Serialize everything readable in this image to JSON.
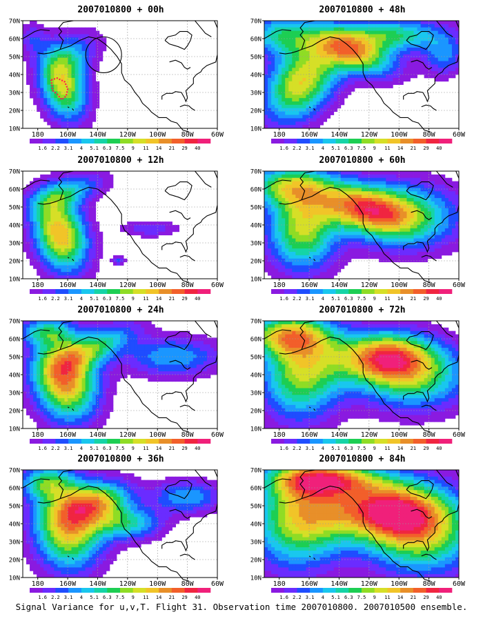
{
  "caption": "Signal Variance for u,v,T. Flight 31. Observation time 2007010800. 2007010500 ensemble.",
  "init_time": "2007010800",
  "colors": [
    "#8a1ae0",
    "#6a2cff",
    "#1f4dff",
    "#1a96ff",
    "#19c7ee",
    "#15d4a6",
    "#1dce53",
    "#8fdc25",
    "#d6df27",
    "#f1c428",
    "#e88f29",
    "#f25f2a",
    "#f02540",
    "#f0207a",
    "#ffffff"
  ],
  "chart_data": {
    "type": "heatmap",
    "xlabel": "",
    "ylabel": "",
    "x_ticks": [
      "180",
      "160W",
      "140W",
      "120W",
      "100W",
      "80W",
      "60W"
    ],
    "y_ticks": [
      "10N",
      "20N",
      "30N",
      "40N",
      "50N",
      "60N",
      "70N"
    ],
    "x_range_lon": [
      -190,
      -60
    ],
    "y_range_lat": [
      10,
      70
    ],
    "colorbar_labels": [
      "1.6",
      "2.2",
      "3.1",
      "4",
      "5.1",
      "6.3",
      "7.5",
      "9",
      "11",
      "14",
      "21",
      "29",
      "40"
    ],
    "colorbar_swatches": 14,
    "panels": [
      {
        "id": "p00",
        "lead": "00h",
        "label": "+ 00h",
        "max_level": 8,
        "blobs": [
          {
            "lon": -163,
            "lat": 34,
            "rlon": 16,
            "rlat": 22,
            "amp": 9.5,
            "rot": -25
          },
          {
            "lon": -156,
            "lat": 52,
            "rlon": 22,
            "rlat": 12,
            "amp": 3.5,
            "rot": -20
          },
          {
            "lon": -184,
            "lat": 60,
            "rlon": 10,
            "rlat": 10,
            "amp": 2.5,
            "rot": 0
          }
        ],
        "obs_loop": [
          [
            -171,
            37
          ],
          [
            -167,
            38
          ],
          [
            -162,
            36
          ],
          [
            -160,
            32
          ],
          [
            -161,
            28
          ],
          [
            -164,
            26
          ],
          [
            -167,
            29
          ],
          [
            -170,
            31
          ]
        ],
        "circle": {
          "lon": -136,
          "lat": 51,
          "r": 12
        }
      },
      {
        "id": "p48",
        "lead": "48h",
        "label": "+ 48h",
        "max_level": 10,
        "blobs": [
          {
            "lon": -165,
            "lat": 36,
            "rlon": 30,
            "rlat": 20,
            "amp": 10,
            "rot": -35
          },
          {
            "lon": -130,
            "lat": 52,
            "rlon": 30,
            "rlat": 12,
            "amp": 9.5,
            "rot": 15
          },
          {
            "lon": -105,
            "lat": 62,
            "rlon": 40,
            "rlat": 10,
            "amp": 7,
            "rot": 0
          },
          {
            "lon": -180,
            "lat": 62,
            "rlon": 25,
            "rlat": 12,
            "amp": 6,
            "rot": 0
          },
          {
            "lon": -70,
            "lat": 50,
            "rlon": 15,
            "rlat": 12,
            "amp": 4,
            "rot": 0
          }
        ]
      },
      {
        "id": "p12",
        "lead": "12h",
        "label": "+ 12h",
        "max_level": 10,
        "blobs": [
          {
            "lon": -165,
            "lat": 35,
            "rlon": 18,
            "rlat": 24,
            "amp": 11,
            "rot": -30
          },
          {
            "lon": -160,
            "lat": 58,
            "rlon": 28,
            "rlat": 9,
            "amp": 5,
            "rot": -15
          },
          {
            "lon": -105,
            "lat": 38,
            "rlon": 20,
            "rlat": 5,
            "amp": 3,
            "rot": 0
          },
          {
            "lon": -126,
            "lat": 20,
            "rlon": 5,
            "rlat": 3,
            "amp": 3,
            "rot": 0
          }
        ]
      },
      {
        "id": "p60",
        "lead": "60h",
        "label": "+ 60h",
        "max_level": 10,
        "blobs": [
          {
            "lon": -165,
            "lat": 38,
            "rlon": 25,
            "rlat": 25,
            "amp": 9,
            "rot": -30
          },
          {
            "lon": -125,
            "lat": 50,
            "rlon": 35,
            "rlat": 14,
            "amp": 10,
            "rot": 10
          },
          {
            "lon": -95,
            "lat": 45,
            "rlon": 40,
            "rlat": 20,
            "amp": 7,
            "rot": 0
          },
          {
            "lon": -175,
            "lat": 62,
            "rlon": 30,
            "rlat": 12,
            "amp": 7,
            "rot": 0
          }
        ]
      },
      {
        "id": "p24",
        "lead": "24h",
        "label": "+ 24h",
        "max_level": 11,
        "blobs": [
          {
            "lon": -162,
            "lat": 38,
            "rlon": 22,
            "rlat": 26,
            "amp": 12,
            "rot": -35
          },
          {
            "lon": -140,
            "lat": 56,
            "rlon": 30,
            "rlat": 10,
            "amp": 6,
            "rot": -20
          },
          {
            "lon": -90,
            "lat": 50,
            "rlon": 35,
            "rlat": 12,
            "amp": 5,
            "rot": 0
          },
          {
            "lon": -175,
            "lat": 64,
            "rlon": 20,
            "rlat": 8,
            "amp": 5,
            "rot": 0
          }
        ]
      },
      {
        "id": "p72",
        "lead": "72h",
        "label": "+ 72h",
        "max_level": 11,
        "blobs": [
          {
            "lon": -165,
            "lat": 42,
            "rlon": 30,
            "rlat": 28,
            "amp": 9,
            "rot": -30
          },
          {
            "lon": -110,
            "lat": 50,
            "rlon": 35,
            "rlat": 15,
            "amp": 11,
            "rot": 0
          },
          {
            "lon": -90,
            "lat": 38,
            "rlon": 40,
            "rlat": 20,
            "amp": 7,
            "rot": 0
          },
          {
            "lon": -175,
            "lat": 62,
            "rlon": 30,
            "rlat": 12,
            "amp": 8,
            "rot": 0
          }
        ]
      },
      {
        "id": "p36",
        "lead": "36h",
        "label": "+ 36h",
        "max_level": 10,
        "blobs": [
          {
            "lon": -160,
            "lat": 38,
            "rlon": 24,
            "rlat": 26,
            "amp": 10.5,
            "rot": -35
          },
          {
            "lon": -140,
            "lat": 52,
            "rlon": 25,
            "rlat": 12,
            "amp": 8.5,
            "rot": -10
          },
          {
            "lon": -120,
            "lat": 40,
            "rlon": 25,
            "rlat": 10,
            "amp": 6,
            "rot": 0
          },
          {
            "lon": -80,
            "lat": 55,
            "rlon": 25,
            "rlat": 10,
            "amp": 5,
            "rot": 0
          },
          {
            "lon": -175,
            "lat": 63,
            "rlon": 20,
            "rlat": 10,
            "amp": 6,
            "rot": 0
          }
        ]
      },
      {
        "id": "p84",
        "lead": "84h",
        "label": "+ 84h",
        "max_level": 11,
        "blobs": [
          {
            "lon": -165,
            "lat": 45,
            "rlon": 35,
            "rlat": 30,
            "amp": 10,
            "rot": -20
          },
          {
            "lon": -110,
            "lat": 48,
            "rlon": 40,
            "rlat": 18,
            "amp": 11,
            "rot": 0
          },
          {
            "lon": -85,
            "lat": 35,
            "rlon": 40,
            "rlat": 25,
            "amp": 9,
            "rot": 0
          },
          {
            "lon": -150,
            "lat": 65,
            "rlon": 40,
            "rlat": 10,
            "amp": 9,
            "rot": 0
          }
        ]
      }
    ]
  }
}
